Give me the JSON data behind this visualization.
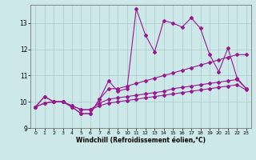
{
  "xlabel": "Windchill (Refroidissement éolien,°C)",
  "background_color": "#cce8e8",
  "line_color": "#991890",
  "grid_color": "#aacccc",
  "xlim": [
    -0.5,
    23.5
  ],
  "ylim": [
    9.0,
    13.7
  ],
  "yticks": [
    9,
    10,
    11,
    12,
    13
  ],
  "xticks": [
    0,
    1,
    2,
    3,
    4,
    5,
    6,
    7,
    8,
    9,
    10,
    11,
    12,
    13,
    14,
    15,
    16,
    17,
    18,
    19,
    20,
    21,
    22,
    23
  ],
  "series1_x": [
    0,
    1,
    2,
    3,
    4,
    5,
    6,
    7,
    8,
    9,
    10,
    11,
    12,
    13,
    14,
    15,
    16,
    17,
    18,
    19,
    20,
    21,
    22,
    23
  ],
  "series1_y": [
    9.8,
    10.2,
    10.0,
    10.0,
    9.8,
    9.55,
    9.55,
    10.1,
    10.8,
    10.4,
    10.5,
    13.55,
    12.55,
    11.9,
    13.1,
    13.0,
    12.85,
    13.2,
    12.8,
    11.8,
    11.15,
    12.05,
    10.9,
    10.5
  ],
  "series2_x": [
    0,
    1,
    2,
    3,
    4,
    5,
    6,
    7,
    8,
    9,
    10,
    11,
    12,
    13,
    14,
    15,
    16,
    17,
    18,
    19,
    20,
    21,
    22,
    23
  ],
  "series2_y": [
    9.8,
    10.2,
    10.0,
    10.0,
    9.8,
    9.55,
    9.55,
    10.1,
    10.5,
    10.5,
    10.6,
    10.7,
    10.8,
    10.9,
    11.0,
    11.1,
    11.2,
    11.3,
    11.4,
    11.5,
    11.6,
    11.7,
    11.8,
    11.8
  ],
  "series3_x": [
    0,
    1,
    2,
    3,
    4,
    5,
    6,
    7,
    8,
    9,
    10,
    11,
    12,
    13,
    14,
    15,
    16,
    17,
    18,
    19,
    20,
    21,
    22,
    23
  ],
  "series3_y": [
    9.8,
    9.95,
    10.0,
    10.0,
    9.85,
    9.7,
    9.7,
    9.95,
    10.1,
    10.15,
    10.2,
    10.25,
    10.3,
    10.35,
    10.4,
    10.5,
    10.55,
    10.6,
    10.65,
    10.7,
    10.75,
    10.8,
    10.85,
    10.5
  ],
  "series4_x": [
    0,
    1,
    2,
    3,
    4,
    5,
    6,
    7,
    8,
    9,
    10,
    11,
    12,
    13,
    14,
    15,
    16,
    17,
    18,
    19,
    20,
    21,
    22,
    23
  ],
  "series4_y": [
    9.8,
    9.95,
    10.0,
    10.0,
    9.85,
    9.7,
    9.7,
    9.85,
    9.95,
    10.0,
    10.05,
    10.1,
    10.15,
    10.2,
    10.25,
    10.3,
    10.35,
    10.4,
    10.45,
    10.5,
    10.55,
    10.6,
    10.65,
    10.45
  ]
}
